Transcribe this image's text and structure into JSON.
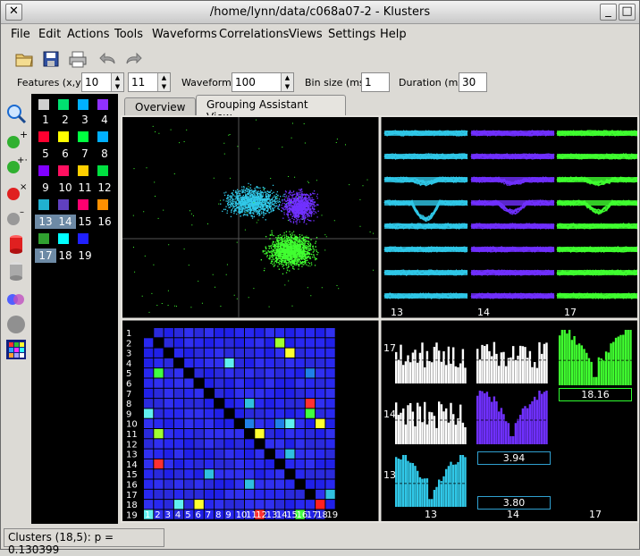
{
  "window": {
    "title": "/home/lynn/data/c068a07-2 - Klusters"
  },
  "menubar": [
    "File",
    "Edit",
    "Actions",
    "Tools",
    "Waveforms",
    "Correlations",
    "Views",
    "Settings",
    "Help"
  ],
  "toolbar": {
    "features_label": "Features (x,y)",
    "feature_x": "10",
    "feature_y": "11",
    "waveforms_label": "Waveforms",
    "waveforms_value": "100",
    "binsize_label": "Bin size (ms)",
    "binsize_value": "1",
    "duration_label": "Duration (ms)",
    "duration_value": "30"
  },
  "clusters": [
    {
      "id": "1",
      "color": "#00e070"
    },
    {
      "id": "2",
      "color": "#00e070"
    },
    {
      "id": "3",
      "color": "#00b0ff"
    },
    {
      "id": "4",
      "color": "#9030ff"
    },
    {
      "id": "5",
      "color": "#ff0030"
    },
    {
      "id": "6",
      "color": "#ffff00"
    },
    {
      "id": "7",
      "color": "#00ff40"
    },
    {
      "id": "8",
      "color": "#00b0ff"
    },
    {
      "id": "9",
      "color": "#8000ff"
    },
    {
      "id": "10",
      "color": "#ff1060"
    },
    {
      "id": "11",
      "color": "#ffd000"
    },
    {
      "id": "12",
      "color": "#00e040"
    },
    {
      "id": "13",
      "color": "#20b0d0"
    },
    {
      "id": "14",
      "color": "#6040c0"
    },
    {
      "id": "15",
      "color": "#ff0070"
    },
    {
      "id": "16",
      "color": "#ff9000"
    },
    {
      "id": "17",
      "color": "#30a030"
    },
    {
      "id": "18",
      "color": "#00ffff"
    },
    {
      "id": "19",
      "color": "#2020ff"
    }
  ],
  "palette_first_swatch": "#d0d0d0",
  "tabs": [
    "Overview",
    "Grouping Assistant View"
  ],
  "waveform_labels": [
    "13",
    "14",
    "17"
  ],
  "matrix_labels": [
    "1",
    "2",
    "3",
    "4",
    "5",
    "6",
    "7",
    "8",
    "9",
    "10",
    "11",
    "12",
    "13",
    "14",
    "15",
    "16",
    "17",
    "18",
    "19"
  ],
  "correlogram": {
    "row_labels": [
      "17",
      "14",
      "13"
    ],
    "col_labels": [
      "13",
      "14",
      "17"
    ],
    "values": [
      "18.16",
      "3.94",
      "3.80"
    ]
  },
  "status": "Clusters (18,5): p = 0.130399"
}
